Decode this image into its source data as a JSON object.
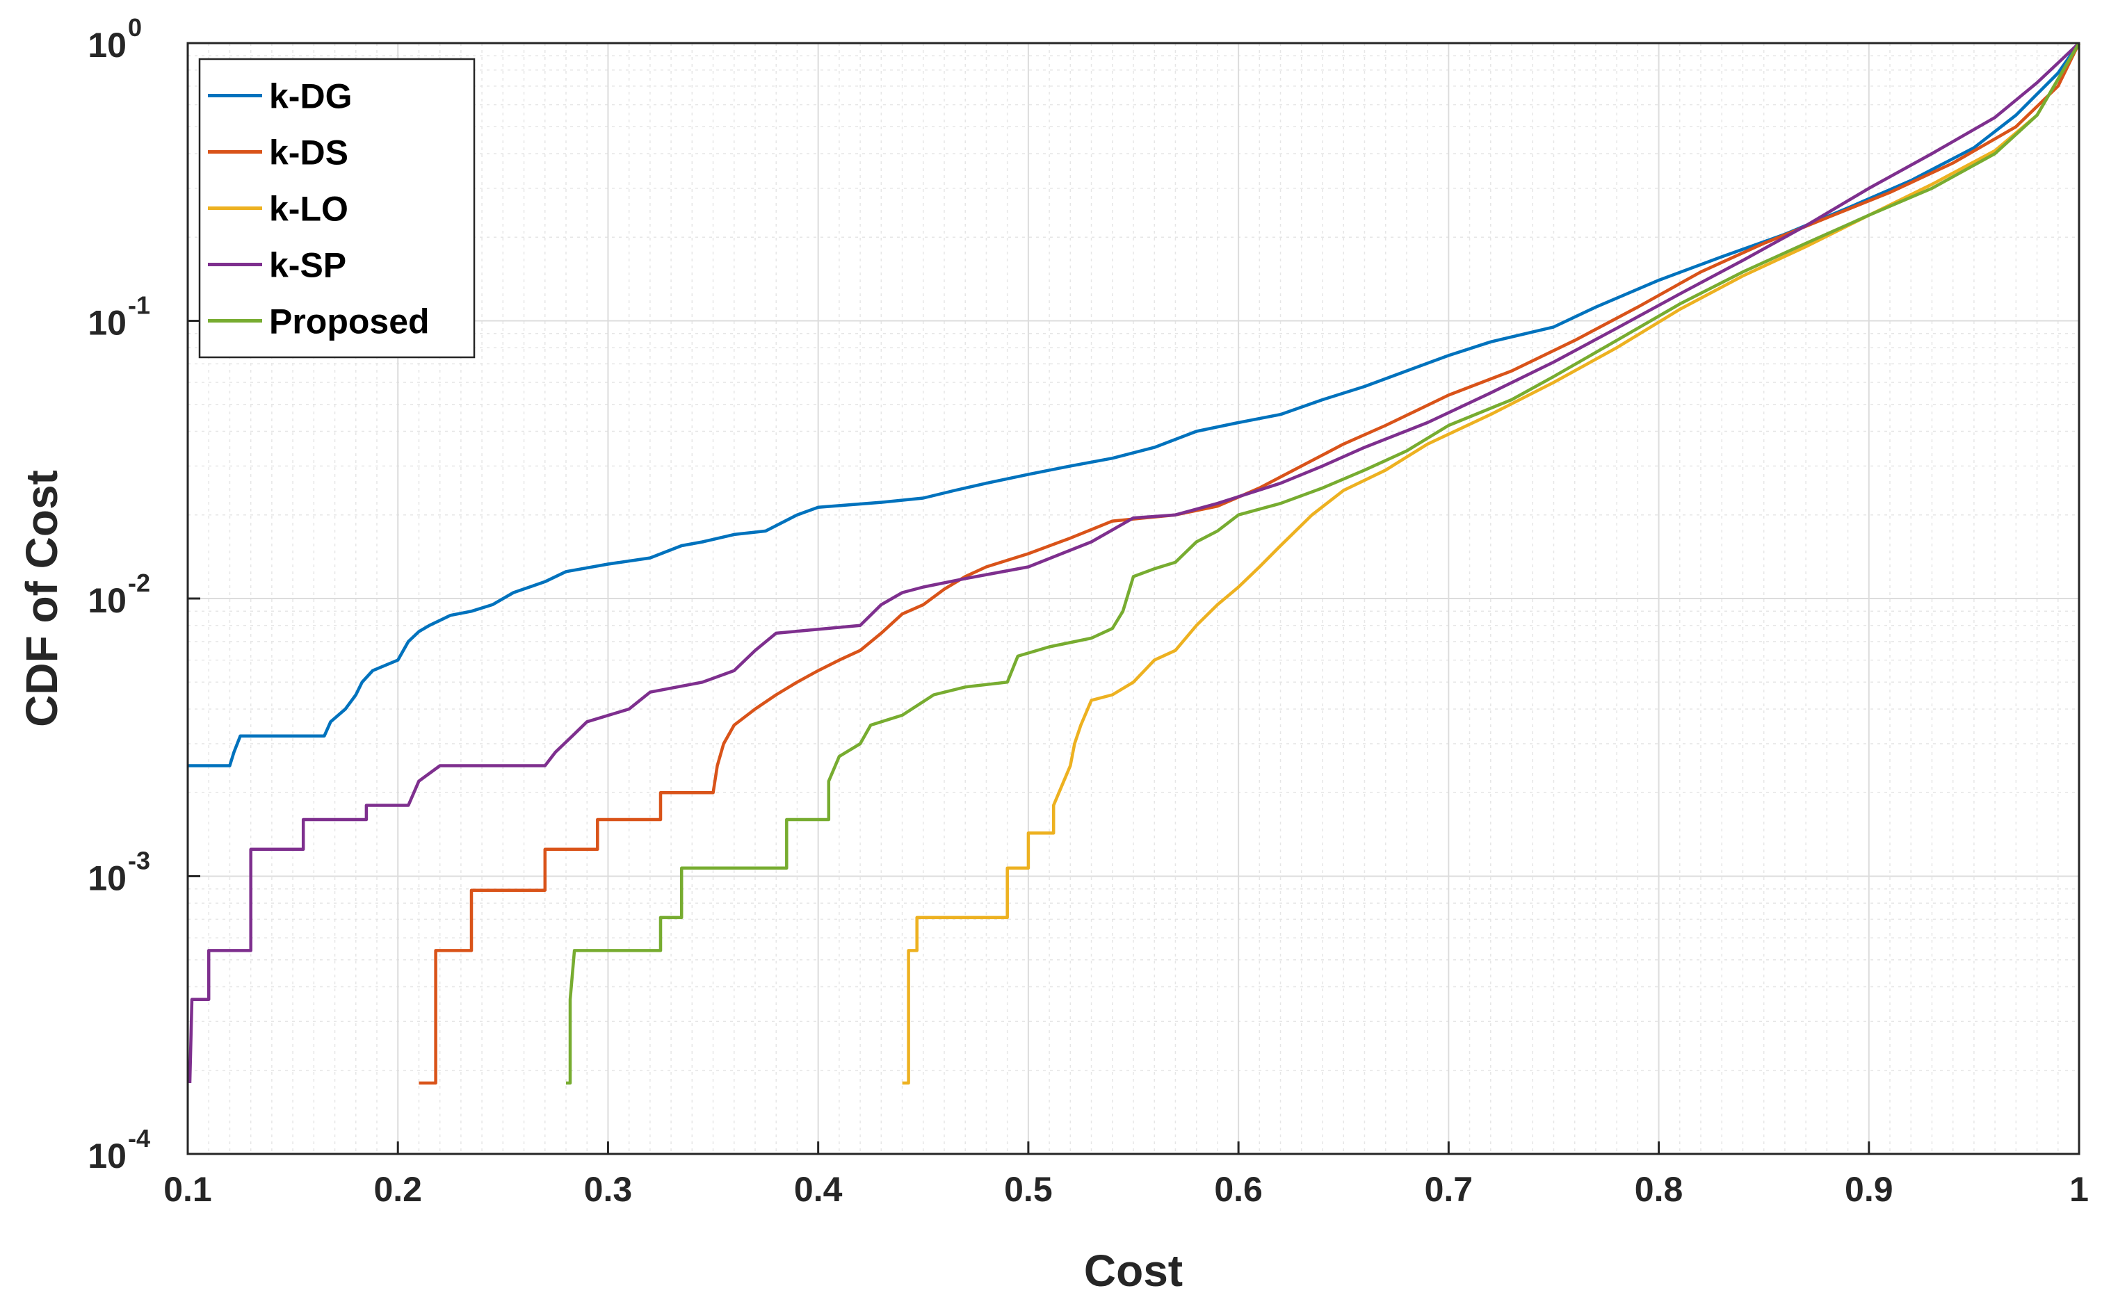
{
  "chart_data": {
    "type": "line",
    "title": "",
    "xlabel": "Cost",
    "ylabel": "CDF of Cost",
    "xscale": "linear",
    "yscale": "log",
    "xlim": [
      0.1,
      1
    ],
    "ylim": [
      0.0001,
      1
    ],
    "xticks": [
      0.1,
      0.2,
      0.3,
      0.4,
      0.5,
      0.6,
      0.7,
      0.8,
      0.9,
      1
    ],
    "xtick_labels": [
      "0.1",
      "0.2",
      "0.3",
      "0.4",
      "0.5",
      "0.6",
      "0.7",
      "0.8",
      "0.9",
      "1"
    ],
    "yticks": [
      0.0001,
      0.001,
      0.01,
      0.1,
      1
    ],
    "ytick_bases": [
      "10",
      "10",
      "10",
      "10",
      "10"
    ],
    "ytick_exponents": [
      "-4",
      "-3",
      "-2",
      "-1",
      "0"
    ],
    "grid": true,
    "minor_grid": true,
    "legend_position": "top-left",
    "series": [
      {
        "name": "k-DG",
        "color": "#0072BD",
        "points": [
          [
            0.1,
            0.0025
          ],
          [
            0.12,
            0.0025
          ],
          [
            0.122,
            0.0028
          ],
          [
            0.125,
            0.0032
          ],
          [
            0.165,
            0.0032
          ],
          [
            0.168,
            0.0036
          ],
          [
            0.175,
            0.004
          ],
          [
            0.18,
            0.0045
          ],
          [
            0.183,
            0.005
          ],
          [
            0.188,
            0.0055
          ],
          [
            0.2,
            0.006
          ],
          [
            0.205,
            0.007
          ],
          [
            0.21,
            0.0076
          ],
          [
            0.215,
            0.008
          ],
          [
            0.225,
            0.0087
          ],
          [
            0.235,
            0.009
          ],
          [
            0.245,
            0.0095
          ],
          [
            0.255,
            0.0105
          ],
          [
            0.27,
            0.0115
          ],
          [
            0.28,
            0.0125
          ],
          [
            0.3,
            0.0133
          ],
          [
            0.32,
            0.014
          ],
          [
            0.335,
            0.0155
          ],
          [
            0.345,
            0.016
          ],
          [
            0.36,
            0.017
          ],
          [
            0.375,
            0.0175
          ],
          [
            0.39,
            0.02
          ],
          [
            0.4,
            0.0213
          ],
          [
            0.43,
            0.0222
          ],
          [
            0.45,
            0.023
          ],
          [
            0.465,
            0.0245
          ],
          [
            0.48,
            0.026
          ],
          [
            0.5,
            0.028
          ],
          [
            0.52,
            0.03
          ],
          [
            0.54,
            0.032
          ],
          [
            0.56,
            0.035
          ],
          [
            0.58,
            0.04
          ],
          [
            0.6,
            0.043
          ],
          [
            0.62,
            0.046
          ],
          [
            0.64,
            0.052
          ],
          [
            0.66,
            0.058
          ],
          [
            0.68,
            0.066
          ],
          [
            0.7,
            0.075
          ],
          [
            0.72,
            0.084
          ],
          [
            0.75,
            0.095
          ],
          [
            0.77,
            0.112
          ],
          [
            0.8,
            0.14
          ],
          [
            0.83,
            0.17
          ],
          [
            0.86,
            0.205
          ],
          [
            0.89,
            0.255
          ],
          [
            0.92,
            0.32
          ],
          [
            0.95,
            0.42
          ],
          [
            0.97,
            0.55
          ],
          [
            0.99,
            0.78
          ],
          [
            1.0,
            1.0
          ]
        ]
      },
      {
        "name": "k-DS",
        "color": "#D95319",
        "points": [
          [
            0.21,
            0.00018
          ],
          [
            0.218,
            0.00018
          ],
          [
            0.218,
            0.00054
          ],
          [
            0.235,
            0.00054
          ],
          [
            0.235,
            0.00089
          ],
          [
            0.27,
            0.00089
          ],
          [
            0.27,
            0.00125
          ],
          [
            0.295,
            0.00125
          ],
          [
            0.295,
            0.0016
          ],
          [
            0.325,
            0.0016
          ],
          [
            0.325,
            0.002
          ],
          [
            0.35,
            0.002
          ],
          [
            0.352,
            0.0025
          ],
          [
            0.355,
            0.003
          ],
          [
            0.36,
            0.0035
          ],
          [
            0.37,
            0.004
          ],
          [
            0.38,
            0.0045
          ],
          [
            0.39,
            0.005
          ],
          [
            0.4,
            0.0055
          ],
          [
            0.41,
            0.006
          ],
          [
            0.42,
            0.0065
          ],
          [
            0.43,
            0.0075
          ],
          [
            0.44,
            0.0088
          ],
          [
            0.45,
            0.0095
          ],
          [
            0.46,
            0.0108
          ],
          [
            0.47,
            0.012
          ],
          [
            0.48,
            0.013
          ],
          [
            0.5,
            0.0145
          ],
          [
            0.52,
            0.0165
          ],
          [
            0.54,
            0.019
          ],
          [
            0.57,
            0.02
          ],
          [
            0.59,
            0.0215
          ],
          [
            0.61,
            0.025
          ],
          [
            0.63,
            0.03
          ],
          [
            0.65,
            0.036
          ],
          [
            0.67,
            0.042
          ],
          [
            0.7,
            0.054
          ],
          [
            0.73,
            0.066
          ],
          [
            0.76,
            0.085
          ],
          [
            0.79,
            0.112
          ],
          [
            0.82,
            0.15
          ],
          [
            0.85,
            0.19
          ],
          [
            0.88,
            0.235
          ],
          [
            0.91,
            0.29
          ],
          [
            0.94,
            0.37
          ],
          [
            0.97,
            0.5
          ],
          [
            0.99,
            0.7
          ],
          [
            1.0,
            1.0
          ]
        ]
      },
      {
        "name": "k-LO",
        "color": "#EDB120",
        "points": [
          [
            0.44,
            0.00018
          ],
          [
            0.443,
            0.00018
          ],
          [
            0.443,
            0.00054
          ],
          [
            0.447,
            0.00054
          ],
          [
            0.447,
            0.00071
          ],
          [
            0.49,
            0.00071
          ],
          [
            0.49,
            0.00107
          ],
          [
            0.5,
            0.00107
          ],
          [
            0.5,
            0.00143
          ],
          [
            0.512,
            0.00143
          ],
          [
            0.512,
            0.0018
          ],
          [
            0.52,
            0.0025
          ],
          [
            0.522,
            0.003
          ],
          [
            0.525,
            0.0035
          ],
          [
            0.53,
            0.0043
          ],
          [
            0.54,
            0.0045
          ],
          [
            0.55,
            0.005
          ],
          [
            0.56,
            0.006
          ],
          [
            0.57,
            0.0065
          ],
          [
            0.58,
            0.008
          ],
          [
            0.59,
            0.0095
          ],
          [
            0.6,
            0.011
          ],
          [
            0.61,
            0.013
          ],
          [
            0.62,
            0.0155
          ],
          [
            0.635,
            0.02
          ],
          [
            0.65,
            0.0245
          ],
          [
            0.67,
            0.029
          ],
          [
            0.69,
            0.036
          ],
          [
            0.72,
            0.046
          ],
          [
            0.75,
            0.06
          ],
          [
            0.78,
            0.08
          ],
          [
            0.81,
            0.11
          ],
          [
            0.84,
            0.145
          ],
          [
            0.87,
            0.185
          ],
          [
            0.9,
            0.24
          ],
          [
            0.93,
            0.31
          ],
          [
            0.96,
            0.41
          ],
          [
            0.98,
            0.55
          ],
          [
            1.0,
            1.0
          ]
        ]
      },
      {
        "name": "k-SP",
        "color": "#7E2F8E",
        "points": [
          [
            0.101,
            0.00018
          ],
          [
            0.102,
            0.00036
          ],
          [
            0.11,
            0.00036
          ],
          [
            0.11,
            0.00054
          ],
          [
            0.13,
            0.00054
          ],
          [
            0.13,
            0.00125
          ],
          [
            0.155,
            0.00125
          ],
          [
            0.155,
            0.0016
          ],
          [
            0.185,
            0.0016
          ],
          [
            0.185,
            0.0018
          ],
          [
            0.205,
            0.0018
          ],
          [
            0.21,
            0.0022
          ],
          [
            0.22,
            0.0025
          ],
          [
            0.27,
            0.0025
          ],
          [
            0.275,
            0.0028
          ],
          [
            0.283,
            0.0032
          ],
          [
            0.29,
            0.0036
          ],
          [
            0.31,
            0.004
          ],
          [
            0.32,
            0.0046
          ],
          [
            0.345,
            0.005
          ],
          [
            0.36,
            0.0055
          ],
          [
            0.37,
            0.0065
          ],
          [
            0.38,
            0.0075
          ],
          [
            0.42,
            0.008
          ],
          [
            0.43,
            0.0095
          ],
          [
            0.44,
            0.0105
          ],
          [
            0.45,
            0.011
          ],
          [
            0.47,
            0.0118
          ],
          [
            0.5,
            0.013
          ],
          [
            0.53,
            0.016
          ],
          [
            0.55,
            0.0195
          ],
          [
            0.57,
            0.02
          ],
          [
            0.59,
            0.022
          ],
          [
            0.62,
            0.026
          ],
          [
            0.64,
            0.03
          ],
          [
            0.66,
            0.035
          ],
          [
            0.69,
            0.043
          ],
          [
            0.72,
            0.055
          ],
          [
            0.75,
            0.071
          ],
          [
            0.78,
            0.094
          ],
          [
            0.81,
            0.125
          ],
          [
            0.84,
            0.165
          ],
          [
            0.87,
            0.22
          ],
          [
            0.9,
            0.3
          ],
          [
            0.93,
            0.4
          ],
          [
            0.96,
            0.54
          ],
          [
            0.98,
            0.72
          ],
          [
            1.0,
            1.0
          ]
        ]
      },
      {
        "name": "Proposed",
        "color": "#77AC30",
        "points": [
          [
            0.28,
            0.00018
          ],
          [
            0.282,
            0.00018
          ],
          [
            0.282,
            0.00036
          ],
          [
            0.284,
            0.00054
          ],
          [
            0.325,
            0.00054
          ],
          [
            0.325,
            0.00071
          ],
          [
            0.335,
            0.00071
          ],
          [
            0.335,
            0.00107
          ],
          [
            0.385,
            0.00107
          ],
          [
            0.385,
            0.0016
          ],
          [
            0.405,
            0.0016
          ],
          [
            0.405,
            0.0022
          ],
          [
            0.41,
            0.0027
          ],
          [
            0.42,
            0.003
          ],
          [
            0.425,
            0.0035
          ],
          [
            0.44,
            0.0038
          ],
          [
            0.455,
            0.0045
          ],
          [
            0.47,
            0.0048
          ],
          [
            0.49,
            0.005
          ],
          [
            0.495,
            0.0062
          ],
          [
            0.51,
            0.0067
          ],
          [
            0.53,
            0.0072
          ],
          [
            0.54,
            0.0078
          ],
          [
            0.545,
            0.009
          ],
          [
            0.55,
            0.012
          ],
          [
            0.56,
            0.0128
          ],
          [
            0.57,
            0.0135
          ],
          [
            0.58,
            0.016
          ],
          [
            0.59,
            0.0175
          ],
          [
            0.6,
            0.02
          ],
          [
            0.62,
            0.022
          ],
          [
            0.64,
            0.025
          ],
          [
            0.66,
            0.029
          ],
          [
            0.68,
            0.034
          ],
          [
            0.7,
            0.042
          ],
          [
            0.73,
            0.052
          ],
          [
            0.75,
            0.063
          ],
          [
            0.78,
            0.085
          ],
          [
            0.81,
            0.115
          ],
          [
            0.84,
            0.15
          ],
          [
            0.87,
            0.19
          ],
          [
            0.9,
            0.24
          ],
          [
            0.93,
            0.3
          ],
          [
            0.96,
            0.4
          ],
          [
            0.98,
            0.55
          ],
          [
            1.0,
            1.0
          ]
        ]
      }
    ]
  }
}
